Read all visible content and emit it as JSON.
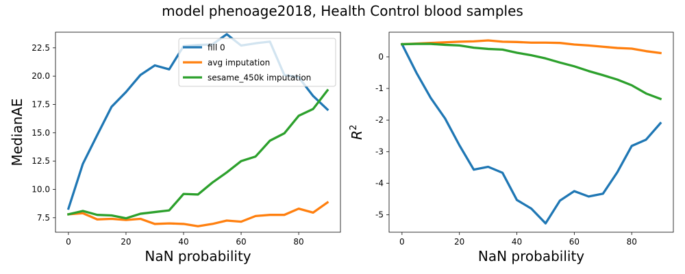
{
  "figure": {
    "suptitle": "model phenoage2018, Health Control blood samples"
  },
  "chart_data": [
    {
      "type": "line",
      "xlabel": "NaN probability",
      "ylabel": "MedianAE",
      "xlim": [
        -4.5,
        94.5
      ],
      "ylim": [
        6.22,
        23.88
      ],
      "xticks": [
        0,
        20,
        40,
        60,
        80
      ],
      "yticks": [
        7.5,
        10.0,
        12.5,
        15.0,
        17.5,
        20.0,
        22.5
      ],
      "ytick_labels": [
        "7.5",
        "10.0",
        "12.5",
        "15.0",
        "17.5",
        "20.0",
        "22.5"
      ],
      "legend_position": "upper center",
      "x": [
        0,
        5,
        10,
        15,
        20,
        25,
        30,
        35,
        40,
        45,
        50,
        55,
        60,
        65,
        70,
        75,
        80,
        85,
        90
      ],
      "series": [
        {
          "name": "fill 0",
          "color": "#1f77b4",
          "values": [
            8.3,
            12.25,
            14.8,
            17.3,
            18.6,
            20.1,
            20.95,
            20.6,
            22.65,
            22.75,
            22.8,
            23.7,
            22.7,
            22.9,
            23.05,
            20.1,
            19.9,
            18.25,
            17.05
          ]
        },
        {
          "name": "avg imputation",
          "color": "#ff7f0e",
          "values": [
            7.8,
            7.9,
            7.35,
            7.4,
            7.3,
            7.4,
            6.95,
            7.0,
            6.95,
            6.75,
            6.95,
            7.25,
            7.15,
            7.65,
            7.75,
            7.75,
            8.3,
            7.95,
            8.85
          ]
        },
        {
          "name": "sesame_450k imputation",
          "color": "#2ca02c",
          "values": [
            7.8,
            8.1,
            7.75,
            7.7,
            7.45,
            7.85,
            8.0,
            8.15,
            9.6,
            9.55,
            10.6,
            11.5,
            12.5,
            12.9,
            14.3,
            14.95,
            16.5,
            17.1,
            18.75
          ]
        }
      ]
    },
    {
      "type": "line",
      "xlabel": "NaN probability",
      "ylabel": "R",
      "ylabel_superscript": "2",
      "xlim": [
        -4.5,
        94.5
      ],
      "ylim": [
        -5.55,
        0.78
      ],
      "xticks": [
        0,
        20,
        40,
        60,
        80
      ],
      "yticks": [
        0,
        -1,
        -2,
        -3,
        -4,
        -5
      ],
      "x": [
        0,
        5,
        10,
        15,
        20,
        25,
        30,
        35,
        40,
        45,
        50,
        55,
        60,
        65,
        70,
        75,
        80,
        85,
        90
      ],
      "series": [
        {
          "color": "#1f77b4",
          "values": [
            0.4,
            -0.5,
            -1.3,
            -1.95,
            -2.8,
            -3.57,
            -3.48,
            -3.67,
            -4.53,
            -4.8,
            -5.27,
            -4.55,
            -4.25,
            -4.42,
            -4.33,
            -3.65,
            -2.82,
            -2.62,
            -2.1
          ]
        },
        {
          "color": "#ff7f0e",
          "values": [
            0.4,
            0.42,
            0.44,
            0.46,
            0.48,
            0.49,
            0.52,
            0.48,
            0.47,
            0.45,
            0.45,
            0.44,
            0.39,
            0.36,
            0.32,
            0.28,
            0.26,
            0.18,
            0.12
          ]
        },
        {
          "color": "#2ca02c",
          "values": [
            0.4,
            0.41,
            0.41,
            0.38,
            0.36,
            0.29,
            0.25,
            0.23,
            0.13,
            0.05,
            -0.05,
            -0.18,
            -0.3,
            -0.45,
            -0.58,
            -0.72,
            -0.9,
            -1.16,
            -1.33
          ]
        }
      ]
    }
  ]
}
